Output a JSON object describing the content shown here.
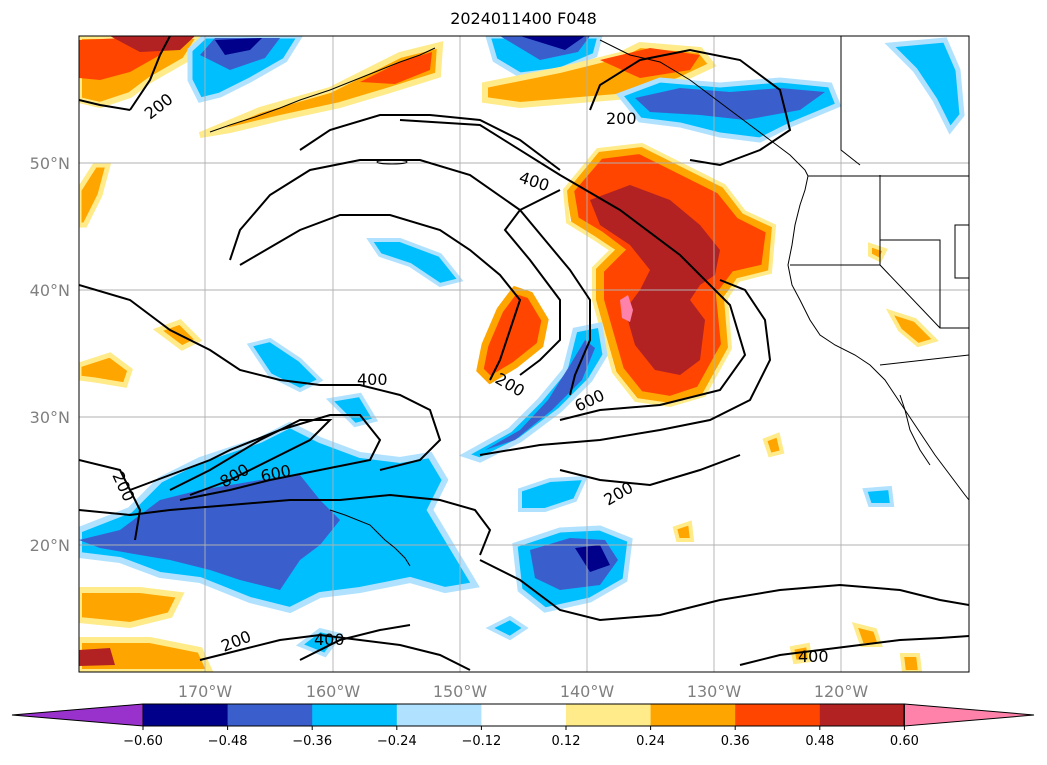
{
  "title": "2024011400 F048",
  "lat_labels": [
    "50°N",
    "40°N",
    "30°N",
    "20°N"
  ],
  "lon_labels": [
    "170°W",
    "160°W",
    "150°W",
    "140°W",
    "130°W",
    "120°W"
  ],
  "contour_labels": [
    "200",
    "200",
    "400",
    "400",
    "600",
    "200",
    "800",
    "600",
    "200",
    "200",
    "400",
    "400",
    "200"
  ],
  "colorbar": {
    "ticks": [
      "−0.60",
      "−0.48",
      "−0.36",
      "−0.24",
      "−0.12",
      "0.12",
      "0.24",
      "0.36",
      "0.48",
      "0.60"
    ],
    "colors": [
      "#9932cc",
      "#00008b",
      "#3a5fcd",
      "#00bfff",
      "#b0e2ff",
      "#ffffff",
      "#ffeb8a",
      "#ffa500",
      "#ff4500",
      "#b22222",
      "#ff82ab"
    ]
  },
  "colors": {
    "gridline": "#b0b0b0",
    "tick_label": "#808080",
    "contour": "#000000"
  }
}
